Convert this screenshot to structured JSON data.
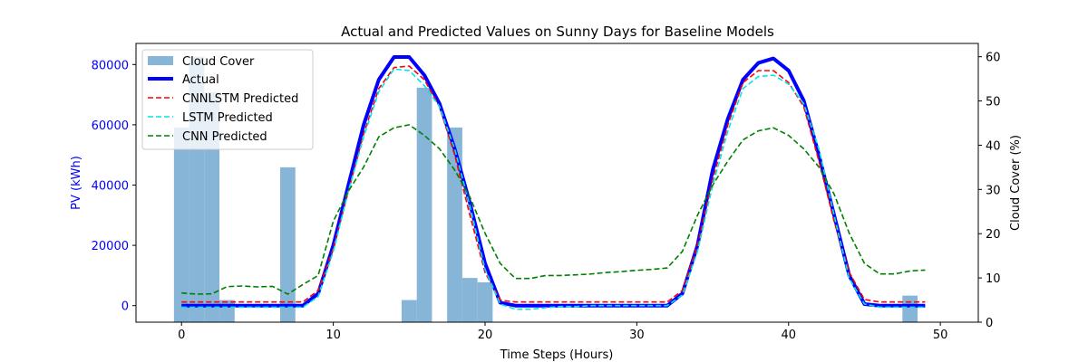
{
  "chart_data": {
    "type": "line",
    "title": "Actual and Predicted Values on Sunny Days for Baseline Models",
    "xlabel": "Time Steps (Hours)",
    "ylabel_left": "PV (kWh)",
    "ylabel_right": "Cloud Cover (%)",
    "xlim": [
      -3,
      52.5
    ],
    "ylim_left": [
      -5500,
      87000
    ],
    "ylim_right": [
      0,
      63
    ],
    "x_ticks": [
      0,
      10,
      20,
      30,
      40,
      50
    ],
    "y_left_ticks": [
      0,
      20000,
      40000,
      60000,
      80000
    ],
    "y_right_ticks": [
      0,
      10,
      20,
      30,
      40,
      50,
      60
    ],
    "grid": false,
    "legend_position": "top-left",
    "colors": {
      "cloud": "#86b5d8",
      "actual": "#0000ff",
      "cnnlstm": "#ff0000",
      "lstm": "#00e5ee",
      "cnn": "#008000",
      "left_axis_text": "#0000ff"
    },
    "x": [
      0,
      1,
      2,
      3,
      4,
      5,
      6,
      7,
      8,
      9,
      10,
      11,
      12,
      13,
      14,
      15,
      16,
      17,
      18,
      19,
      20,
      21,
      22,
      23,
      24,
      25,
      26,
      27,
      28,
      29,
      30,
      31,
      32,
      33,
      34,
      35,
      36,
      37,
      38,
      39,
      40,
      41,
      42,
      43,
      44,
      45,
      46,
      47,
      48,
      49
    ],
    "cloud_cover": {
      "name": "Cloud Cover",
      "values": [
        44,
        60,
        52,
        5,
        0,
        0,
        0,
        35,
        0,
        0,
        0,
        0,
        0,
        0,
        0,
        5,
        53,
        0,
        44,
        10,
        9,
        0,
        0,
        0,
        0,
        0,
        0,
        0,
        0,
        0,
        0,
        0,
        0,
        0,
        0,
        0,
        0,
        0,
        0,
        0,
        0,
        0,
        0,
        0,
        0,
        0,
        0,
        0,
        6,
        0
      ]
    },
    "series": [
      {
        "name": "Actual",
        "values": [
          0,
          0,
          0,
          0,
          0,
          0,
          0,
          0,
          0,
          4000,
          20000,
          40000,
          60000,
          75000,
          82500,
          82500,
          76500,
          67000,
          52000,
          34000,
          14000,
          1000,
          0,
          0,
          0,
          0,
          0,
          0,
          0,
          0,
          0,
          0,
          0,
          4000,
          20000,
          45000,
          62000,
          75000,
          80500,
          82000,
          78000,
          68000,
          50000,
          30000,
          10000,
          500,
          0,
          0,
          0,
          0
        ]
      },
      {
        "name": "CNNLSTM Predicted",
        "values": [
          1200,
          1200,
          1200,
          1200,
          1200,
          1200,
          1200,
          1200,
          1200,
          5000,
          19000,
          38000,
          57000,
          72000,
          79000,
          79500,
          75000,
          66000,
          50000,
          30000,
          11000,
          1800,
          1200,
          1200,
          1200,
          1200,
          1200,
          1200,
          1200,
          1200,
          1200,
          1200,
          1200,
          5000,
          20000,
          42000,
          60000,
          74000,
          78000,
          78000,
          74000,
          66000,
          48000,
          28000,
          11000,
          2000,
          1200,
          1200,
          1200,
          1200
        ]
      },
      {
        "name": "LSTM Predicted",
        "values": [
          -500,
          -500,
          -500,
          -500,
          -500,
          -500,
          -500,
          -500,
          -500,
          3000,
          18000,
          38000,
          56000,
          71000,
          78500,
          78000,
          73000,
          66000,
          52000,
          33000,
          12000,
          500,
          -1200,
          -1200,
          -700,
          -300,
          -300,
          0,
          0,
          0,
          0,
          0,
          0,
          3500,
          18000,
          40000,
          58000,
          72000,
          76000,
          76500,
          73500,
          67000,
          52000,
          30000,
          9000,
          500,
          -500,
          -500,
          -500,
          -500
        ]
      },
      {
        "name": "CNN Predicted",
        "values": [
          4200,
          3800,
          3900,
          6300,
          6500,
          6200,
          6400,
          3800,
          7000,
          10000,
          28000,
          38000,
          46000,
          56000,
          59000,
          60000,
          56500,
          52000,
          45000,
          36000,
          24000,
          14000,
          9000,
          9000,
          10000,
          10000,
          10200,
          10500,
          11000,
          11300,
          11700,
          12000,
          12500,
          18000,
          30000,
          40000,
          48000,
          55000,
          58000,
          59000,
          56500,
          52000,
          46000,
          37000,
          24000,
          14000,
          10500,
          10500,
          11500,
          11800
        ]
      }
    ]
  }
}
